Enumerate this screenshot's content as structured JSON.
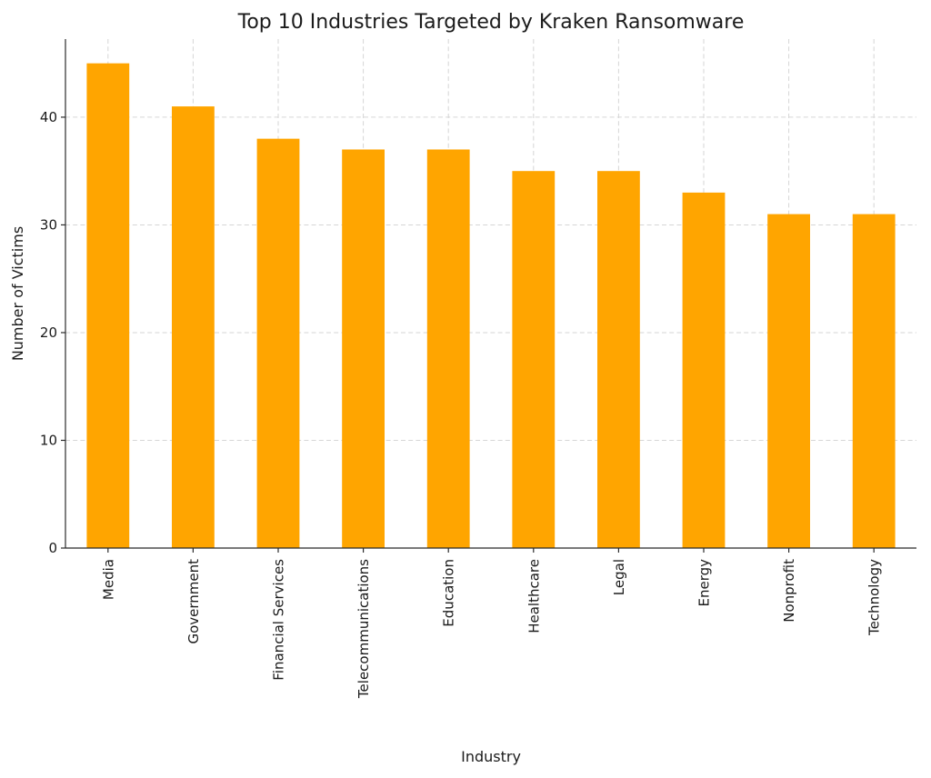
{
  "chart_data": {
    "type": "bar",
    "title": "Top 10 Industries Targeted by Kraken Ransomware",
    "xlabel": "Industry",
    "ylabel": "Number of Victims",
    "categories": [
      "Media",
      "Government",
      "Financial Services",
      "Telecommunications",
      "Education",
      "Healthcare",
      "Legal",
      "Energy",
      "Nonprofit",
      "Technology"
    ],
    "values": [
      45,
      41,
      38,
      37,
      37,
      35,
      35,
      33,
      31,
      31
    ],
    "yticks": [
      0,
      10,
      20,
      30,
      40
    ],
    "ylim": [
      0,
      47.25
    ],
    "bar_color": "#FFA500",
    "bar_width_fraction": 0.5,
    "grid": "both, dashed",
    "legend": "none"
  }
}
